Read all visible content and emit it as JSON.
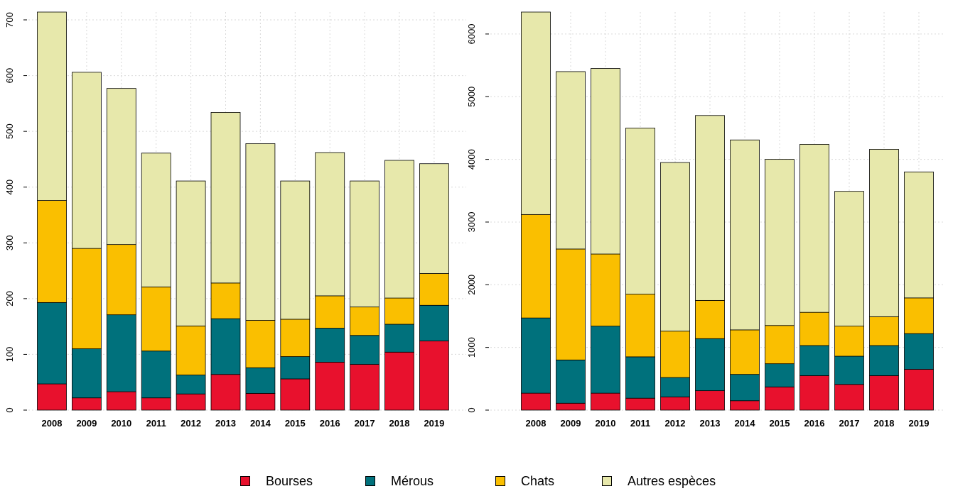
{
  "chart_data": [
    {
      "type": "bar",
      "stacked": true,
      "title": "",
      "xlabel": "",
      "ylabel": "",
      "ylim": [
        0,
        714
      ],
      "yticks": [
        0,
        100,
        200,
        300,
        400,
        500,
        600,
        700
      ],
      "grid": true,
      "categories": [
        "2008",
        "2009",
        "2010",
        "2011",
        "2012",
        "2013",
        "2014",
        "2015",
        "2016",
        "2017",
        "2018",
        "2019"
      ],
      "series": [
        {
          "name": "Bourses",
          "color": "#E8112D",
          "values": [
            47,
            22,
            33,
            22,
            29,
            64,
            30,
            56,
            86,
            82,
            104,
            124
          ]
        },
        {
          "name": "Mérous",
          "color": "#00717C",
          "values": [
            146,
            88,
            138,
            84,
            34,
            100,
            46,
            40,
            61,
            52,
            50,
            64
          ]
        },
        {
          "name": "Chats",
          "color": "#FABF00",
          "values": [
            183,
            180,
            126,
            115,
            88,
            64,
            85,
            67,
            58,
            51,
            47,
            57
          ]
        },
        {
          "name": "Autres espèces",
          "color": "#E7E8AB",
          "values": [
            338,
            316,
            280,
            240,
            260,
            306,
            317,
            248,
            257,
            226,
            247,
            197
          ]
        }
      ]
    },
    {
      "type": "bar",
      "stacked": true,
      "title": "",
      "xlabel": "",
      "ylabel": "",
      "ylim": [
        0,
        6350
      ],
      "yticks": [
        0,
        1000,
        2000,
        3000,
        4000,
        5000,
        6000
      ],
      "grid": true,
      "categories": [
        "2008",
        "2009",
        "2010",
        "2011",
        "2012",
        "2013",
        "2014",
        "2015",
        "2016",
        "2017",
        "2018",
        "2019"
      ],
      "series": [
        {
          "name": "Bourses",
          "color": "#E8112D",
          "values": [
            270,
            110,
            270,
            190,
            210,
            310,
            150,
            370,
            550,
            410,
            550,
            650
          ]
        },
        {
          "name": "Mérous",
          "color": "#00717C",
          "values": [
            1200,
            690,
            1070,
            660,
            310,
            830,
            420,
            370,
            480,
            450,
            480,
            570
          ]
        },
        {
          "name": "Chats",
          "color": "#FABF00",
          "values": [
            1650,
            1770,
            1150,
            1000,
            740,
            610,
            710,
            610,
            530,
            480,
            460,
            570
          ]
        },
        {
          "name": "Autres espèces",
          "color": "#E7E8AB",
          "values": [
            3230,
            2830,
            2960,
            2650,
            2690,
            2950,
            3030,
            2650,
            2680,
            2150,
            2670,
            2010
          ]
        }
      ]
    }
  ],
  "legend": {
    "placement": "bottom",
    "items": [
      {
        "label": "Bourses",
        "color": "#E8112D"
      },
      {
        "label": "Mérous",
        "color": "#00717C"
      },
      {
        "label": "Chats",
        "color": "#FABF00"
      },
      {
        "label": "Autres espèces",
        "color": "#E7E8AB"
      }
    ]
  }
}
